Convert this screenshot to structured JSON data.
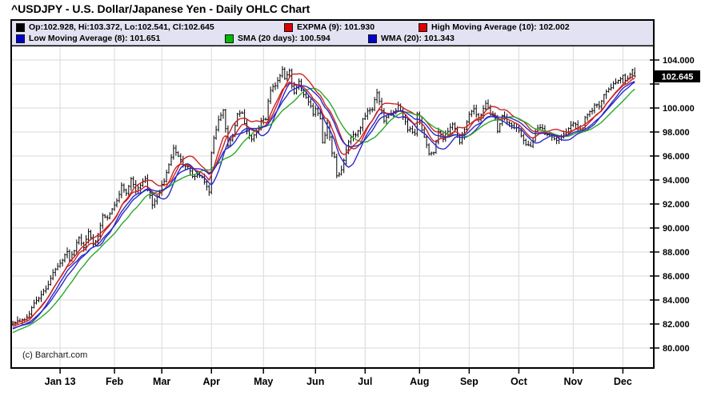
{
  "title": "^USDJPY - U.S. Dollar/Japanese Yen - Daily OHLC Chart",
  "copyright": "(c) Barchart.com",
  "last_price": {
    "label": "102.645"
  },
  "legend": {
    "background": "#e2e2f2",
    "items": [
      {
        "label": "Op:102.928, Hi:103.372, Lo:102.541, Cl:102.645",
        "color": "#000000"
      },
      {
        "label": "EXPMA (9): 101.930",
        "color": "#dd0000"
      },
      {
        "label": "High Moving Average (10): 102.002",
        "color": "#dd0000"
      },
      {
        "label": "Low Moving Average (8): 101.651",
        "color": "#0000cc"
      },
      {
        "label": "SMA (20 days): 100.594",
        "color": "#00bb00"
      },
      {
        "label": "WMA (20): 101.343",
        "color": "#0000cc"
      }
    ]
  },
  "chart_data": {
    "type": "ohlc",
    "title": "^USDJPY Daily OHLC",
    "symbol": "^USDJPY",
    "grid": true,
    "grid_color": "#d9d9d9",
    "bar_color": "#000000",
    "frame_color": "#000000",
    "ylim": [
      78.3,
      105.2
    ],
    "y_axis": {
      "side": "right",
      "ticks": [
        {
          "v": 104,
          "label": "104.000"
        },
        {
          "v": 102,
          "label": ""
        },
        {
          "v": 100,
          "label": "100.000"
        },
        {
          "v": 98,
          "label": "98.000"
        },
        {
          "v": 96,
          "label": "96.000"
        },
        {
          "v": 94,
          "label": "94.000"
        },
        {
          "v": 92,
          "label": "92.000"
        },
        {
          "v": 90,
          "label": "90.000"
        },
        {
          "v": 88,
          "label": "88.000"
        },
        {
          "v": 86,
          "label": "86.000"
        },
        {
          "v": 84,
          "label": "84.000"
        },
        {
          "v": 82,
          "label": "82.000"
        },
        {
          "v": 80,
          "label": "80.000"
        }
      ]
    },
    "x_ticks": [
      {
        "d": 20,
        "label": "Jan 13"
      },
      {
        "d": 43,
        "label": "Feb"
      },
      {
        "d": 63,
        "label": "Mar"
      },
      {
        "d": 84,
        "label": "Apr"
      },
      {
        "d": 106,
        "label": "May"
      },
      {
        "d": 128,
        "label": "Jun"
      },
      {
        "d": 149,
        "label": "Jul"
      },
      {
        "d": 172,
        "label": "Aug"
      },
      {
        "d": 193,
        "label": "Sep"
      },
      {
        "d": 214,
        "label": "Oct"
      },
      {
        "d": 237,
        "label": "Nov"
      },
      {
        "d": 258,
        "label": "Dec"
      }
    ],
    "n_bars": 264,
    "anchors": [
      [
        0,
        82.2
      ],
      [
        3,
        82.3
      ],
      [
        6,
        82.6
      ],
      [
        9,
        83.6
      ],
      [
        12,
        84.4
      ],
      [
        14,
        84.9
      ],
      [
        16,
        85.9
      ],
      [
        19,
        86.7
      ],
      [
        21,
        87.4
      ],
      [
        23,
        88.1
      ],
      [
        24,
        87.2
      ],
      [
        26,
        88.2
      ],
      [
        28,
        89.2
      ],
      [
        30,
        88.5
      ],
      [
        32,
        89.6
      ],
      [
        34,
        88.6
      ],
      [
        36,
        89.3
      ],
      [
        38,
        91.0
      ],
      [
        40,
        90.7
      ],
      [
        42,
        91.7
      ],
      [
        44,
        92.3
      ],
      [
        46,
        93.5
      ],
      [
        48,
        92.8
      ],
      [
        50,
        94.2
      ],
      [
        52,
        93.2
      ],
      [
        54,
        93.6
      ],
      [
        56,
        94.0
      ],
      [
        57,
        93.3
      ],
      [
        59,
        91.9
      ],
      [
        61,
        92.7
      ],
      [
        63,
        93.5
      ],
      [
        65,
        94.5
      ],
      [
        67,
        95.9
      ],
      [
        68,
        96.6
      ],
      [
        70,
        96.1
      ],
      [
        72,
        95.3
      ],
      [
        74,
        95.1
      ],
      [
        76,
        94.3
      ],
      [
        78,
        94.5
      ],
      [
        80,
        94.1
      ],
      [
        82,
        93.4
      ],
      [
        83,
        92.9
      ],
      [
        84,
        96.3
      ],
      [
        85,
        97.6
      ],
      [
        87,
        99.0
      ],
      [
        89,
        99.7
      ],
      [
        90,
        98.3
      ],
      [
        91,
        96.8
      ],
      [
        93,
        97.9
      ],
      [
        95,
        99.4
      ],
      [
        97,
        99.5
      ],
      [
        99,
        98.1
      ],
      [
        101,
        97.4
      ],
      [
        103,
        97.9
      ],
      [
        105,
        99.0
      ],
      [
        107,
        99.1
      ],
      [
        108,
        100.6
      ],
      [
        109,
        101.6
      ],
      [
        111,
        101.9
      ],
      [
        112,
        102.3
      ],
      [
        114,
        103.2
      ],
      [
        115,
        102.4
      ],
      [
        117,
        103.1
      ],
      [
        118,
        101.9
      ],
      [
        119,
        101.3
      ],
      [
        121,
        102.1
      ],
      [
        123,
        101.0
      ],
      [
        125,
        100.5
      ],
      [
        127,
        99.6
      ],
      [
        128,
        100.0
      ],
      [
        130,
        99.1
      ],
      [
        131,
        97.0
      ],
      [
        132,
        97.6
      ],
      [
        133,
        98.7
      ],
      [
        135,
        96.3
      ],
      [
        136,
        95.9
      ],
      [
        137,
        94.3
      ],
      [
        139,
        94.9
      ],
      [
        141,
        96.4
      ],
      [
        143,
        97.7
      ],
      [
        145,
        97.8
      ],
      [
        147,
        98.3
      ],
      [
        148,
        99.1
      ],
      [
        150,
        99.7
      ],
      [
        152,
        100.0
      ],
      [
        154,
        101.2
      ],
      [
        156,
        99.7
      ],
      [
        157,
        98.9
      ],
      [
        159,
        99.3
      ],
      [
        161,
        99.6
      ],
      [
        163,
        100.2
      ],
      [
        165,
        99.3
      ],
      [
        167,
        98.3
      ],
      [
        169,
        98.0
      ],
      [
        170,
        97.9
      ],
      [
        171,
        99.5
      ],
      [
        173,
        98.3
      ],
      [
        175,
        96.9
      ],
      [
        176,
        96.3
      ],
      [
        178,
        96.4
      ],
      [
        180,
        98.1
      ],
      [
        182,
        97.4
      ],
      [
        184,
        98.0
      ],
      [
        186,
        98.7
      ],
      [
        188,
        97.8
      ],
      [
        189,
        97.0
      ],
      [
        191,
        98.2
      ],
      [
        193,
        99.4
      ],
      [
        195,
        100.0
      ],
      [
        197,
        99.1
      ],
      [
        199,
        100.0
      ],
      [
        200,
        100.4
      ],
      [
        202,
        99.4
      ],
      [
        204,
        99.2
      ],
      [
        205,
        98.0
      ],
      [
        207,
        99.4
      ],
      [
        209,
        98.8
      ],
      [
        211,
        98.5
      ],
      [
        213,
        98.3
      ],
      [
        214,
        98.0
      ],
      [
        216,
        97.2
      ],
      [
        218,
        96.9
      ],
      [
        219,
        96.8
      ],
      [
        220,
        97.2
      ],
      [
        221,
        98.2
      ],
      [
        223,
        98.5
      ],
      [
        225,
        97.9
      ],
      [
        227,
        97.7
      ],
      [
        229,
        97.4
      ],
      [
        231,
        97.4
      ],
      [
        233,
        97.7
      ],
      [
        235,
        98.4
      ],
      [
        237,
        98.6
      ],
      [
        239,
        98.5
      ],
      [
        241,
        98.1
      ],
      [
        242,
        99.1
      ],
      [
        244,
        99.6
      ],
      [
        246,
        100.2
      ],
      [
        248,
        100.1
      ],
      [
        250,
        101.0
      ],
      [
        251,
        101.3
      ],
      [
        253,
        101.7
      ],
      [
        255,
        102.2
      ],
      [
        257,
        102.4
      ],
      [
        258,
        102.8
      ],
      [
        259,
        102.4
      ],
      [
        260,
        102.5
      ],
      [
        261,
        102.9
      ],
      [
        262,
        103.1
      ],
      [
        263,
        102.645
      ]
    ],
    "last_bar": {
      "open": 102.928,
      "high": 103.372,
      "low": 102.541,
      "close": 102.645
    },
    "overlays": [
      {
        "name": "EXPMA (9)",
        "type": "ema",
        "window": 9,
        "source": "close",
        "color": "#cc2222",
        "value": 101.93
      },
      {
        "name": "High Moving Average (10)",
        "type": "sma",
        "window": 10,
        "source": "high",
        "color": "#cc2222",
        "value": 102.002
      },
      {
        "name": "Low Moving Average (8)",
        "type": "sma",
        "window": 8,
        "source": "low",
        "color": "#2a2ac8",
        "value": 101.651
      },
      {
        "name": "SMA (20 days)",
        "type": "sma",
        "window": 20,
        "source": "close",
        "color": "#2aa82a",
        "value": 100.594
      },
      {
        "name": "WMA (20)",
        "type": "wma",
        "window": 20,
        "source": "close",
        "color": "#2a2ac8",
        "value": 101.343
      }
    ],
    "gen": {
      "seed": 42,
      "close_jitter": 0.14,
      "wick_min": 0.06,
      "wick_rand": 0.3,
      "pre_days": 20,
      "pre_start": 80.3
    }
  }
}
